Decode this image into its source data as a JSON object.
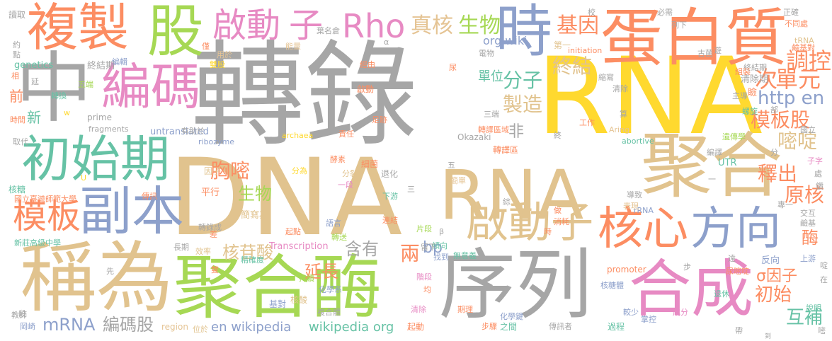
{
  "colors": {
    "gray": "#a6a6a6",
    "tan": "#e1c38e",
    "yellow": "#ffd92f",
    "orange": "#fc8d62",
    "green": "#66c2a5",
    "blue": "#8da0cb",
    "pink": "#e78ac3",
    "lime": "#a6d854",
    "beige": "#e5c494"
  },
  "words": [
    {
      "text": "轉錄",
      "color": "gray"
    },
    {
      "text": "DNA",
      "color": "tan"
    },
    {
      "text": "RNA",
      "color": "yellow"
    },
    {
      "text": "RNA",
      "color": "tan"
    },
    {
      "text": "序列",
      "color": "gray"
    },
    {
      "text": "蛋白質",
      "color": "orange"
    },
    {
      "text": "聚合",
      "color": "tan"
    },
    {
      "text": "聚合酶",
      "color": "lime"
    },
    {
      "text": "稱為",
      "color": "tan"
    },
    {
      "text": "複製",
      "color": "orange"
    },
    {
      "text": "股",
      "color": "lime"
    },
    {
      "text": "中",
      "color": "gray"
    },
    {
      "text": "編碼",
      "color": "pink"
    },
    {
      "text": "初始期",
      "color": "green"
    },
    {
      "text": "副本",
      "color": "blue"
    },
    {
      "text": "合成",
      "color": "pink"
    },
    {
      "text": "核心",
      "color": "orange"
    },
    {
      "text": "方向",
      "color": "blue"
    },
    {
      "text": "時",
      "color": "blue"
    },
    {
      "text": "啟動子",
      "color": "tan"
    },
    {
      "text": "模板",
      "color": "orange"
    },
    {
      "text": "啟動",
      "color": "pink"
    },
    {
      "text": "子",
      "color": "pink"
    },
    {
      "text": "Rho",
      "color": "pink"
    },
    {
      "text": "真核",
      "color": "beige"
    },
    {
      "text": "生物",
      "color": "lime"
    },
    {
      "text": "基因",
      "color": "orange"
    },
    {
      "text": "調控",
      "color": "orange"
    },
    {
      "text": "次",
      "color": "orange"
    },
    {
      "text": "單元",
      "color": "orange"
    },
    {
      "text": "分子",
      "color": "green"
    },
    {
      "text": "終結",
      "color": "tan"
    },
    {
      "text": "製造",
      "color": "tan"
    },
    {
      "text": "單位",
      "color": "green"
    },
    {
      "text": "org wiki",
      "color": "blue"
    },
    {
      "text": "http en",
      "color": "blue"
    },
    {
      "text": "模板股",
      "color": "orange"
    },
    {
      "text": "嘧啶",
      "color": "tan"
    },
    {
      "text": "胸嘧",
      "color": "orange"
    },
    {
      "text": "生物",
      "color": "lime"
    },
    {
      "text": "非",
      "color": "gray"
    },
    {
      "text": "釋出",
      "color": "orange"
    },
    {
      "text": "原核",
      "color": "orange"
    },
    {
      "text": "核苷酸",
      "color": "tan"
    },
    {
      "text": "延長",
      "color": "orange"
    },
    {
      "text": "含有",
      "color": "gray"
    },
    {
      "text": "兩",
      "color": "orange"
    },
    {
      "text": "bp",
      "color": "blue"
    },
    {
      "text": "mRNA",
      "color": "blue"
    },
    {
      "text": "編碼股",
      "color": "gray"
    },
    {
      "text": "en wikipedia",
      "color": "blue"
    },
    {
      "text": "wikipedia org",
      "color": "green"
    },
    {
      "text": "初始",
      "color": "orange"
    },
    {
      "text": "σ因子",
      "color": "orange"
    },
    {
      "text": "互補",
      "color": "green"
    },
    {
      "text": "酶",
      "color": "orange"
    },
    {
      "text": "終結期",
      "color": "gray"
    },
    {
      "text": "genetics",
      "color": "green"
    },
    {
      "text": "前",
      "color": "orange"
    },
    {
      "text": "新",
      "color": "green"
    },
    {
      "text": "untranslated",
      "color": "blue"
    },
    {
      "text": "prime",
      "color": "gray"
    },
    {
      "text": "fragments",
      "color": "gray"
    },
    {
      "text": "ribozyme",
      "color": "blue"
    },
    {
      "text": "Transcription",
      "color": "pink"
    },
    {
      "text": "region",
      "color": "beige"
    },
    {
      "text": "Okazaki",
      "color": "gray"
    },
    {
      "text": "promoter",
      "color": "orange"
    },
    {
      "text": "UTR",
      "color": "green"
    },
    {
      "text": "abortive",
      "color": "green"
    },
    {
      "text": "initiation",
      "color": "orange"
    },
    {
      "text": "Aring",
      "color": "beige"
    },
    {
      "text": "archaea",
      "color": "yellow"
    },
    {
      "text": "rRNA",
      "color": "blue"
    },
    {
      "text": "tRNA",
      "color": "tan"
    },
    {
      "text": "國立臺灣師範大學",
      "color": "orange"
    },
    {
      "text": "新莊高級中學",
      "color": "green"
    },
    {
      "text": "讀取",
      "color": "gray"
    },
    {
      "text": "核糖",
      "color": "green"
    },
    {
      "text": "傳訊",
      "color": "orange"
    },
    {
      "text": "轉錄成",
      "color": "gray"
    },
    {
      "text": "平行",
      "color": "orange"
    },
    {
      "text": "長期",
      "color": "gray"
    },
    {
      "text": "效率",
      "color": "tan"
    },
    {
      "text": "精確度",
      "color": "green"
    },
    {
      "text": "簡寫為",
      "color": "tan"
    },
    {
      "text": "基對",
      "color": "blue"
    },
    {
      "text": "化學系",
      "color": "blue"
    },
    {
      "text": "核酸",
      "color": "tan"
    },
    {
      "text": "轉譯區",
      "color": "orange"
    },
    {
      "text": "轉譯區域",
      "color": "orange"
    },
    {
      "text": "細菌",
      "color": "orange"
    },
    {
      "text": "酵素",
      "color": "orange"
    },
    {
      "text": "退化",
      "color": "gray"
    },
    {
      "text": "下游",
      "color": "green"
    },
    {
      "text": "連結",
      "color": "orange"
    },
    {
      "text": "片段",
      "color": "lime"
    },
    {
      "text": "傾向",
      "color": "green"
    },
    {
      "text": "找到",
      "color": "blue"
    },
    {
      "text": "清除期",
      "color": "gray"
    },
    {
      "text": "瞼",
      "color": "orange"
    },
    {
      "text": "第一",
      "color": "tan"
    },
    {
      "text": "終結期",
      "color": "gray"
    },
    {
      "text": "導致",
      "color": "gray"
    },
    {
      "text": "表現",
      "color": "beige"
    },
    {
      "text": "專一",
      "color": "gray"
    },
    {
      "text": "交互",
      "color": "gray"
    },
    {
      "text": "鹼基",
      "color": "gray"
    },
    {
      "text": "上游",
      "color": "blue"
    },
    {
      "text": "反向",
      "color": "blue"
    },
    {
      "text": "尿嘧啶",
      "color": "orange"
    },
    {
      "text": "遺傳學",
      "color": "lime"
    },
    {
      "text": "國立",
      "color": "gray"
    },
    {
      "text": "化學鍵",
      "color": "blue"
    },
    {
      "text": "期理",
      "color": "orange"
    },
    {
      "text": "過程",
      "color": "green"
    },
    {
      "text": "之間",
      "color": "green"
    },
    {
      "text": "傳訊者",
      "color": "gray"
    },
    {
      "text": "掌控",
      "color": "blue"
    },
    {
      "text": "成分",
      "color": "pink"
    },
    {
      "text": "較少",
      "color": "blue"
    },
    {
      "text": "核糖體",
      "color": "blue"
    },
    {
      "text": "起動",
      "color": "orange"
    },
    {
      "text": "步驟",
      "color": "orange"
    },
    {
      "text": "教師",
      "color": "gray"
    },
    {
      "text": "岡崎",
      "color": "blue"
    },
    {
      "text": "位於",
      "color": "tan"
    },
    {
      "text": "複合體",
      "color": "gray"
    },
    {
      "text": "清除",
      "color": "pink"
    },
    {
      "text": "持續",
      "color": "lime"
    },
    {
      "text": "階段",
      "color": "pink"
    },
    {
      "text": "起點",
      "color": "orange"
    },
    {
      "text": "語言",
      "color": "blue"
    },
    {
      "text": "轉送",
      "color": "lime"
    },
    {
      "text": "消耗",
      "color": "orange"
    },
    {
      "text": "無意義",
      "color": "green"
    },
    {
      "text": "因子",
      "color": "tan"
    },
    {
      "text": "分為",
      "color": "yellow"
    },
    {
      "text": "分裂",
      "color": "tan"
    },
    {
      "text": "一段",
      "color": "pink"
    },
    {
      "text": "簡單",
      "color": "beige"
    },
    {
      "text": "責任",
      "color": "orange"
    },
    {
      "text": "足跡",
      "color": "orange"
    },
    {
      "text": "三端",
      "color": "gray"
    },
    {
      "text": "啟動",
      "color": "orange"
    },
    {
      "text": "轉換",
      "color": "green"
    },
    {
      "text": "五端",
      "color": "lime"
    },
    {
      "text": "編輯",
      "color": "blue"
    },
    {
      "text": "經由",
      "color": "orange"
    },
    {
      "text": "葉名倉",
      "color": "gray"
    },
    {
      "text": "能量",
      "color": "beige"
    },
    {
      "text": "雙股",
      "color": "yellow"
    },
    {
      "text": "用於",
      "color": "beige"
    },
    {
      "text": "僅",
      "color": "orange"
    },
    {
      "text": "延",
      "color": "gray"
    },
    {
      "text": "相",
      "color": "orange"
    },
    {
      "text": "約",
      "color": "gray"
    },
    {
      "text": "點",
      "color": "gray"
    },
    {
      "text": "時間",
      "color": "orange"
    },
    {
      "text": "取代",
      "color": "gray"
    },
    {
      "text": "有助於",
      "color": "gray"
    },
    {
      "text": "古菌",
      "color": "gray"
    },
    {
      "text": "組裝",
      "color": "orange"
    },
    {
      "text": "縮寫",
      "color": "gray"
    },
    {
      "text": "清除",
      "color": "gray"
    },
    {
      "text": "工作",
      "color": "orange"
    },
    {
      "text": "主導",
      "color": "gray"
    },
    {
      "text": "螺旋",
      "color": "green"
    },
    {
      "text": "正確",
      "color": "gray"
    },
    {
      "text": "不同處",
      "color": "orange"
    },
    {
      "text": "鹼基對",
      "color": "orange"
    },
    {
      "text": "必需",
      "color": "gray"
    },
    {
      "text": "列下",
      "color": "gray"
    },
    {
      "text": "校",
      "color": "gray"
    },
    {
      "text": "編譯",
      "color": "gray"
    },
    {
      "text": "說明",
      "color": "green"
    },
    {
      "text": "退休",
      "color": "green"
    },
    {
      "text": "遠",
      "color": "gray"
    },
    {
      "text": "步",
      "color": "gray"
    },
    {
      "text": "差",
      "color": "orange"
    },
    {
      "text": "雙",
      "color": "orange"
    },
    {
      "text": "留下",
      "color": "gray"
    },
    {
      "text": "做",
      "color": "orange"
    },
    {
      "text": "時",
      "color": "orange"
    },
    {
      "text": "均",
      "color": "orange"
    },
    {
      "text": "先",
      "color": "gray"
    },
    {
      "text": "段",
      "color": "gray"
    },
    {
      "text": "五",
      "color": "gray"
    },
    {
      "text": "β",
      "color": "gray"
    },
    {
      "text": "α",
      "color": "gray"
    },
    {
      "text": "U",
      "color": "yellow"
    },
    {
      "text": "w",
      "color": "yellow"
    },
    {
      "text": "算",
      "color": "gray"
    },
    {
      "text": "終",
      "color": "gray"
    },
    {
      "text": "尿",
      "color": "orange"
    },
    {
      "text": "一",
      "color": "gray"
    },
    {
      "text": "子字",
      "color": "pink"
    },
    {
      "text": "處",
      "color": "gray"
    },
    {
      "text": "電物",
      "color": "gray"
    },
    {
      "text": "鑽",
      "color": "gray"
    },
    {
      "text": "遊",
      "color": "gray"
    },
    {
      "text": "帶",
      "color": "gray"
    },
    {
      "text": "三",
      "color": "gray"
    },
    {
      "text": "嘧",
      "color": "gray"
    },
    {
      "text": "綜",
      "color": "gray"
    },
    {
      "text": "部",
      "color": "gray"
    },
    {
      "text": "分",
      "color": "gray"
    },
    {
      "text": "啶",
      "color": "gray"
    },
    {
      "text": "在",
      "color": "gray"
    },
    {
      "text": "到",
      "color": "gray"
    }
  ]
}
